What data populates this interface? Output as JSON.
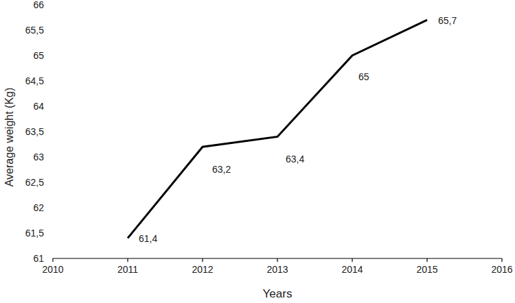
{
  "chart_data": {
    "type": "line",
    "x_label": "Years",
    "y_label": "Average weight (Kg)",
    "x": [
      2011,
      2012,
      2013,
      2014,
      2015
    ],
    "values": [
      61.4,
      63.2,
      63.4,
      65,
      65.7
    ],
    "value_labels": [
      "61,4",
      "63,2",
      "63,4",
      "65",
      "65,7"
    ],
    "color": "#000000",
    "xlim": [
      2010,
      2016
    ],
    "xticks": [
      2010,
      2011,
      2012,
      2013,
      2014,
      2015,
      2016
    ],
    "ylim": [
      61,
      66
    ],
    "yticks": [
      61,
      {
        "value": 61.5,
        "label": "61,5"
      },
      62,
      {
        "value": 62.5,
        "label": "62,5"
      },
      63,
      {
        "value": 63.5,
        "label": "63,5"
      },
      64,
      {
        "value": 64.5,
        "label": "64,5"
      },
      65,
      {
        "value": 65.5,
        "label": "65,5"
      },
      66
    ],
    "grid": false,
    "data_labels": true
  }
}
